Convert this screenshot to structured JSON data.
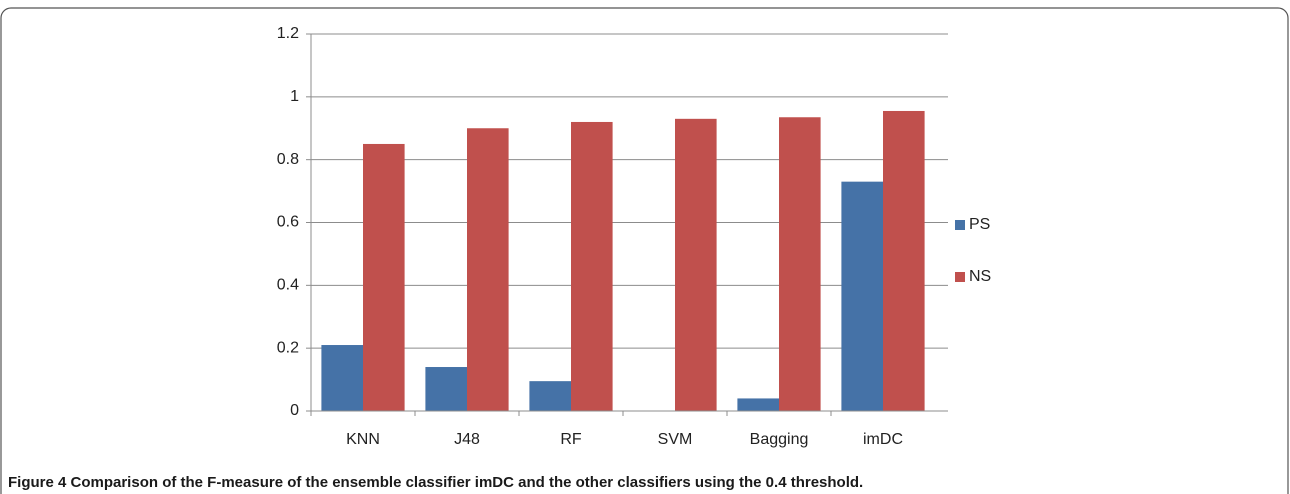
{
  "chart_data": {
    "type": "bar",
    "caption": "Figure 4 Comparison of the F-measure of the ensemble classifier imDC and the other classifiers using the 0.4 threshold.",
    "categories": [
      "KNN",
      "J48",
      "RF",
      "SVM",
      "Bagging",
      "imDC"
    ],
    "series": [
      {
        "name": "PS",
        "color": "#4572a7",
        "values": [
          0.21,
          0.14,
          0.095,
          0,
          0.04,
          0.73
        ]
      },
      {
        "name": "NS",
        "color": "#c0504d",
        "values": [
          0.85,
          0.9,
          0.92,
          0.93,
          0.935,
          0.955
        ]
      }
    ],
    "ylim": [
      0,
      1.2
    ],
    "yticks": [
      0,
      0.2,
      0.4,
      0.6,
      0.8,
      1,
      1.2
    ],
    "grid": true,
    "legend": "right"
  }
}
